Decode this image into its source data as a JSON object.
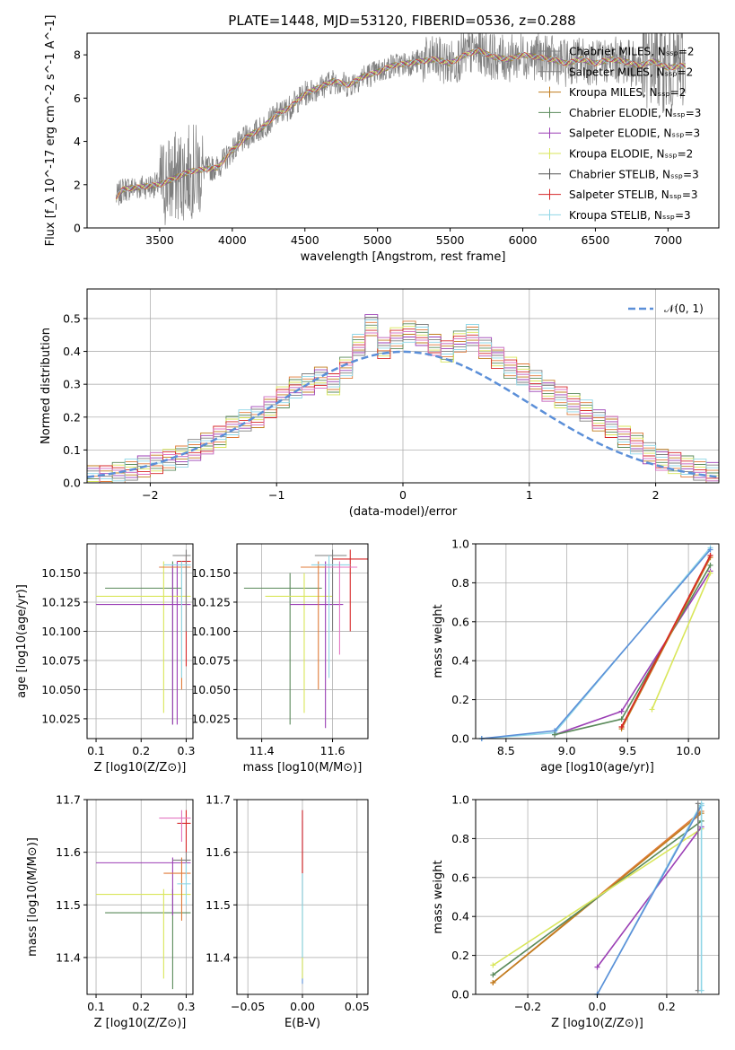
{
  "title": "PLATE=1448, MJD=53120, FIBERID=0536, z=0.288",
  "colors": {
    "c1": "#5b8fd8",
    "c2": "#e07b3a",
    "c3": "#c17d1f",
    "c4": "#5a8a5a",
    "c5": "#9b3fb5",
    "c6": "#d9e65a",
    "c7": "#7f7f7f",
    "c8": "#d62728",
    "c9": "#8fd6e6",
    "c10": "#e377c2"
  },
  "chart_data": [
    {
      "type": "line",
      "xlabel": "wavelength [Angstrom, rest frame]",
      "ylabel": "Flux [f_λ 10^-17 erg cm^-2 s^-1 A^-1]",
      "xlim": [
        3000,
        7350
      ],
      "ylim": [
        0,
        9
      ],
      "xticks": [
        "3500",
        "4000",
        "4500",
        "5000",
        "5500",
        "6000",
        "6500",
        "7000"
      ],
      "yticks": [
        "0",
        "2",
        "4",
        "6",
        "8"
      ],
      "legend_position": "right",
      "legend": [
        "Chabrier MILES, N_SSP=2",
        "Salpeter MILES, N_SSP=2",
        "Kroupa MILES, N_SSP=2",
        "Chabrier ELODIE, N_SSP=3",
        "Salpeter ELODIE, N_SSP=3",
        "Kroupa ELODIE, N_SSP=2",
        "Chabrier STELIB, N_SSP=3",
        "Salpeter STELIB, N_SSP=3",
        "Kroupa STELIB, N_SSP=3"
      ],
      "continuum": {
        "x": [
          3200,
          3250,
          3500,
          3600,
          3700,
          3800,
          3900,
          4000,
          4100,
          4200,
          4300,
          4400,
          4500,
          4600,
          4700,
          4800,
          4900,
          5000,
          5100,
          5200,
          5300,
          5400,
          5500,
          5600,
          5700,
          5800,
          5900,
          6000,
          6100,
          6200,
          6300,
          6400,
          6500,
          6600,
          6700,
          6800,
          6900,
          7000,
          7100
        ],
        "y": [
          1.4,
          1.8,
          2.0,
          2.3,
          2.6,
          2.7,
          2.8,
          3.6,
          4.2,
          4.6,
          5.2,
          5.6,
          6.2,
          6.5,
          6.8,
          6.6,
          7.0,
          7.2,
          7.5,
          7.6,
          7.7,
          7.8,
          7.6,
          8.0,
          8.2,
          7.9,
          7.8,
          8.0,
          7.9,
          7.8,
          7.6,
          7.8,
          7.6,
          7.8,
          7.7,
          7.5,
          7.7,
          7.4,
          7.5
        ]
      }
    },
    {
      "type": "line",
      "xlabel": "(data-model)/error",
      "ylabel": "Normed distribution",
      "xlim": [
        -2.5,
        2.5
      ],
      "ylim": [
        0,
        0.59
      ],
      "xticks": [
        "−2",
        "−1",
        "0",
        "1",
        "2"
      ],
      "yticks": [
        "0.0",
        "0.1",
        "0.2",
        "0.3",
        "0.4",
        "0.5"
      ],
      "legend_position": "top-right",
      "legend": [
        "𝒩(0, 1)"
      ],
      "hist_bins_start": -2.5,
      "hist_bin_width": 0.1,
      "hist_values": [
        0.02,
        0.02,
        0.03,
        0.04,
        0.05,
        0.06,
        0.07,
        0.08,
        0.1,
        0.12,
        0.14,
        0.17,
        0.19,
        0.2,
        0.23,
        0.26,
        0.29,
        0.3,
        0.32,
        0.3,
        0.35,
        0.42,
        0.48,
        0.41,
        0.44,
        0.46,
        0.45,
        0.42,
        0.4,
        0.43,
        0.45,
        0.41,
        0.38,
        0.35,
        0.33,
        0.31,
        0.28,
        0.26,
        0.24,
        0.22,
        0.19,
        0.17,
        0.14,
        0.12,
        0.09,
        0.07,
        0.06,
        0.05,
        0.04,
        0.03
      ]
    },
    {
      "type": "scatter",
      "xlabel": "Z [log10(Z/Z⊙)]",
      "ylabel": "age  [log10(age/yr)]",
      "xlim": [
        0.08,
        0.315
      ],
      "ylim": [
        10.008,
        10.175
      ],
      "xticks": [
        "0.1",
        "0.2",
        "0.3"
      ],
      "yticks": [
        "10.025",
        "10.050",
        "10.075",
        "10.100",
        "10.125",
        "10.150"
      ]
    },
    {
      "type": "scatter",
      "xlabel": "mass [log10(M/M⊙)]",
      "ylabel": "",
      "xlim": [
        11.33,
        11.7
      ],
      "ylim": [
        10.008,
        10.175
      ],
      "xticks": [
        "11.4",
        "11.6"
      ],
      "yticks": [
        "10.025",
        "10.050",
        "10.075",
        "10.100",
        "10.125",
        "10.150"
      ]
    },
    {
      "type": "line",
      "xlabel": "age  [log10(age/yr)]",
      "ylabel": "mass weight",
      "xlim": [
        8.25,
        10.25
      ],
      "ylim": [
        0,
        1
      ],
      "xticks": [
        "8.5",
        "9.0",
        "9.5",
        "10.0"
      ],
      "yticks": [
        "0.0",
        "0.2",
        "0.4",
        "0.6",
        "0.8",
        "1.0"
      ]
    },
    {
      "type": "scatter",
      "xlabel": "Z [log10(Z/Z⊙)]",
      "ylabel": "mass [log10(M/M⊙)]",
      "xlim": [
        0.08,
        0.315
      ],
      "ylim": [
        11.33,
        11.7
      ],
      "xticks": [
        "0.1",
        "0.2",
        "0.3"
      ],
      "yticks": [
        "11.4",
        "11.5",
        "11.6",
        "11.7"
      ]
    },
    {
      "type": "scatter",
      "xlabel": "E(B-V)",
      "ylabel": "",
      "xlim": [
        -0.06,
        0.06
      ],
      "ylim": [
        11.33,
        11.7
      ],
      "xticks": [
        "−0.05",
        "0.00",
        "0.05"
      ],
      "yticks": [
        "11.4",
        "11.5",
        "11.6",
        "11.7"
      ]
    },
    {
      "type": "line",
      "xlabel": "Z [log10(Z/Z⊙)]",
      "ylabel": "mass weight",
      "xlim": [
        -0.35,
        0.35
      ],
      "ylim": [
        0,
        1
      ],
      "xticks": [
        "−0.2",
        "0.0",
        "0.2"
      ],
      "yticks": [
        "0.0",
        "0.2",
        "0.4",
        "0.6",
        "0.8",
        "1.0"
      ]
    }
  ]
}
